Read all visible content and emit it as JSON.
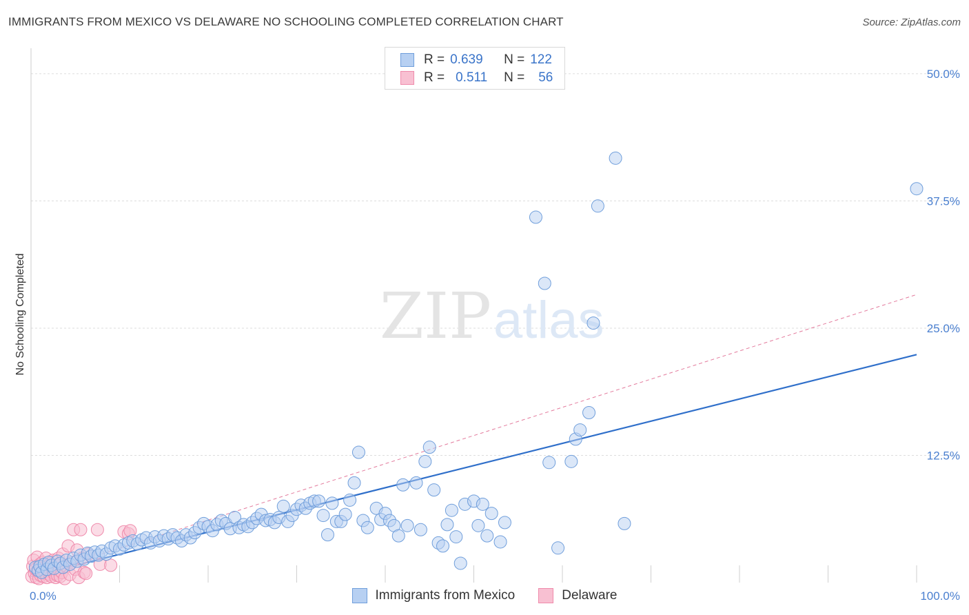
{
  "header": {
    "title": "IMMIGRANTS FROM MEXICO VS DELAWARE NO SCHOOLING COMPLETED CORRELATION CHART",
    "source": "Source: ZipAtlas.com"
  },
  "watermark": {
    "zip": "ZIP",
    "atlas": "atlas"
  },
  "legend": {
    "rows": [
      {
        "r_label": "R =",
        "r_value": "0.639",
        "n_label": "N =",
        "n_value": "122"
      },
      {
        "r_label": "R =",
        "r_value": "0.511",
        "n_label": "N =",
        "n_value": "56"
      }
    ]
  },
  "colors": {
    "mexico_fill": "#b7d0f2",
    "mexico_stroke": "#6f9edb",
    "mexico_line": "#2f6fca",
    "delaware_fill": "#f8c0d2",
    "delaware_stroke": "#ef8aab",
    "delaware_line": "#e37a9c",
    "grid": "#dcdcdc",
    "tick_text": "#4a7fcf"
  },
  "chart_data": {
    "type": "scatter",
    "title": "IMMIGRANTS FROM MEXICO VS DELAWARE NO SCHOOLING COMPLETED CORRELATION CHART",
    "xlabel": "",
    "ylabel": "No Schooling Completed",
    "xlim": [
      0,
      100
    ],
    "ylim": [
      0,
      52.5
    ],
    "y_ticks": [
      12.5,
      25.0,
      37.5,
      50.0
    ],
    "y_tick_labels": [
      "12.5%",
      "25.0%",
      "37.5%",
      "50.0%"
    ],
    "x_tick_labels": [
      "0.0%",
      "100.0%"
    ],
    "legend_position": "bottom",
    "series": [
      {
        "name": "Immigrants from Mexico",
        "R": 0.639,
        "N": 122,
        "trend": {
          "x": [
            0,
            100
          ],
          "y": [
            0.6,
            22.4
          ]
        },
        "points": [
          [
            0.5,
            1.5
          ],
          [
            0.8,
            1.2
          ],
          [
            1.0,
            1.6
          ],
          [
            1.2,
            1.0
          ],
          [
            1.5,
            1.8
          ],
          [
            1.8,
            1.3
          ],
          [
            2.0,
            2.0
          ],
          [
            2.3,
            1.7
          ],
          [
            2.6,
            1.4
          ],
          [
            3.0,
            2.1
          ],
          [
            3.3,
            1.9
          ],
          [
            3.6,
            1.5
          ],
          [
            4.0,
            2.2
          ],
          [
            4.4,
            1.8
          ],
          [
            4.8,
            2.4
          ],
          [
            5.2,
            2.1
          ],
          [
            5.6,
            2.7
          ],
          [
            6.0,
            2.3
          ],
          [
            6.4,
            2.9
          ],
          [
            6.8,
            2.6
          ],
          [
            7.2,
            3.0
          ],
          [
            7.6,
            2.7
          ],
          [
            8.0,
            3.1
          ],
          [
            8.5,
            2.8
          ],
          [
            9.0,
            3.4
          ],
          [
            9.5,
            3.6
          ],
          [
            10.0,
            3.3
          ],
          [
            10.5,
            3.7
          ],
          [
            11.0,
            3.9
          ],
          [
            11.5,
            4.1
          ],
          [
            12.0,
            3.8
          ],
          [
            12.5,
            4.2
          ],
          [
            13.0,
            4.4
          ],
          [
            13.5,
            3.9
          ],
          [
            14.0,
            4.5
          ],
          [
            14.5,
            4.1
          ],
          [
            15.0,
            4.6
          ],
          [
            15.5,
            4.3
          ],
          [
            16.0,
            4.7
          ],
          [
            16.5,
            4.4
          ],
          [
            17.0,
            4.1
          ],
          [
            17.5,
            4.7
          ],
          [
            18.0,
            4.4
          ],
          [
            18.5,
            4.9
          ],
          [
            19.0,
            5.4
          ],
          [
            19.5,
            5.8
          ],
          [
            20.0,
            5.5
          ],
          [
            20.5,
            5.1
          ],
          [
            21.0,
            5.7
          ],
          [
            21.5,
            6.1
          ],
          [
            22.0,
            5.8
          ],
          [
            22.5,
            5.3
          ],
          [
            23.0,
            6.4
          ],
          [
            23.5,
            5.4
          ],
          [
            24.0,
            5.7
          ],
          [
            24.5,
            5.5
          ],
          [
            25.0,
            5.9
          ],
          [
            25.5,
            6.3
          ],
          [
            26.0,
            6.7
          ],
          [
            26.5,
            6.1
          ],
          [
            27.0,
            6.2
          ],
          [
            27.5,
            5.9
          ],
          [
            28.0,
            6.4
          ],
          [
            28.5,
            7.5
          ],
          [
            29.0,
            6.0
          ],
          [
            29.5,
            6.6
          ],
          [
            30.0,
            7.2
          ],
          [
            30.5,
            7.6
          ],
          [
            31.0,
            7.3
          ],
          [
            31.5,
            7.8
          ],
          [
            32.0,
            8.0
          ],
          [
            32.5,
            8.0
          ],
          [
            33.0,
            6.6
          ],
          [
            33.5,
            4.7
          ],
          [
            34.0,
            7.8
          ],
          [
            34.5,
            6.0
          ],
          [
            35.0,
            6.0
          ],
          [
            35.5,
            6.7
          ],
          [
            36.0,
            8.1
          ],
          [
            36.5,
            9.8
          ],
          [
            37.0,
            12.8
          ],
          [
            37.5,
            6.1
          ],
          [
            38.0,
            5.4
          ],
          [
            39.0,
            7.3
          ],
          [
            39.5,
            6.2
          ],
          [
            40.0,
            6.8
          ],
          [
            40.5,
            6.1
          ],
          [
            41.0,
            5.6
          ],
          [
            41.5,
            4.6
          ],
          [
            42.0,
            9.6
          ],
          [
            42.5,
            5.6
          ],
          [
            43.5,
            9.8
          ],
          [
            44.0,
            5.2
          ],
          [
            44.5,
            11.9
          ],
          [
            45.0,
            13.3
          ],
          [
            45.5,
            9.1
          ],
          [
            46.0,
            3.9
          ],
          [
            46.5,
            3.6
          ],
          [
            47.0,
            5.7
          ],
          [
            47.5,
            7.1
          ],
          [
            48.0,
            4.5
          ],
          [
            48.5,
            1.9
          ],
          [
            49.0,
            7.7
          ],
          [
            50.0,
            8.0
          ],
          [
            50.5,
            5.6
          ],
          [
            51.0,
            7.7
          ],
          [
            51.5,
            4.6
          ],
          [
            52.0,
            6.8
          ],
          [
            53.0,
            4.0
          ],
          [
            53.5,
            5.9
          ],
          [
            57.0,
            35.9
          ],
          [
            58.0,
            29.4
          ],
          [
            58.5,
            11.8
          ],
          [
            59.5,
            3.4
          ],
          [
            61.0,
            11.9
          ],
          [
            61.5,
            14.1
          ],
          [
            62.0,
            15.0
          ],
          [
            63.0,
            16.7
          ],
          [
            63.5,
            25.5
          ],
          [
            64.0,
            37.0
          ],
          [
            66.0,
            41.7
          ],
          [
            67.0,
            5.8
          ],
          [
            100.0,
            38.7
          ]
        ]
      },
      {
        "name": "Delaware",
        "R": 0.511,
        "N": 56,
        "trend": {
          "x": [
            0,
            100
          ],
          "y": [
            0.6,
            28.3
          ]
        },
        "points": [
          [
            0.1,
            0.6
          ],
          [
            0.2,
            1.6
          ],
          [
            0.3,
            2.2
          ],
          [
            0.4,
            0.9
          ],
          [
            0.5,
            1.3
          ],
          [
            0.6,
            0.5
          ],
          [
            0.7,
            2.5
          ],
          [
            0.8,
            1.1
          ],
          [
            0.9,
            0.4
          ],
          [
            1.0,
            1.8
          ],
          [
            1.1,
            0.7
          ],
          [
            1.2,
            1.4
          ],
          [
            1.3,
            2.0
          ],
          [
            1.4,
            0.6
          ],
          [
            1.5,
            1.2
          ],
          [
            1.6,
            0.9
          ],
          [
            1.7,
            2.4
          ],
          [
            1.8,
            0.5
          ],
          [
            1.9,
            1.6
          ],
          [
            2.0,
            1.1
          ],
          [
            2.1,
            0.8
          ],
          [
            2.2,
            1.9
          ],
          [
            2.3,
            0.6
          ],
          [
            2.4,
            1.4
          ],
          [
            2.5,
            2.2
          ],
          [
            2.6,
            0.9
          ],
          [
            2.7,
            1.3
          ],
          [
            2.8,
            0.5
          ],
          [
            2.9,
            1.7
          ],
          [
            3.0,
            0.7
          ],
          [
            3.1,
            2.4
          ],
          [
            3.2,
            1.2
          ],
          [
            3.3,
            0.6
          ],
          [
            3.4,
            1.9
          ],
          [
            3.5,
            1.0
          ],
          [
            3.6,
            2.8
          ],
          [
            3.8,
            0.4
          ],
          [
            4.0,
            1.6
          ],
          [
            4.2,
            3.6
          ],
          [
            4.4,
            0.8
          ],
          [
            4.6,
            2.0
          ],
          [
            4.8,
            5.2
          ],
          [
            5.0,
            1.3
          ],
          [
            5.2,
            3.2
          ],
          [
            5.4,
            0.5
          ],
          [
            5.6,
            5.2
          ],
          [
            5.8,
            2.4
          ],
          [
            6.0,
            1.0
          ],
          [
            6.2,
            0.9
          ],
          [
            6.5,
            2.8
          ],
          [
            7.5,
            5.2
          ],
          [
            7.8,
            1.8
          ],
          [
            9.0,
            1.7
          ],
          [
            10.5,
            5.0
          ],
          [
            11.0,
            4.8
          ],
          [
            11.2,
            5.1
          ]
        ]
      }
    ]
  },
  "bottom_legend": {
    "items": [
      "Immigrants from Mexico",
      "Delaware"
    ]
  }
}
